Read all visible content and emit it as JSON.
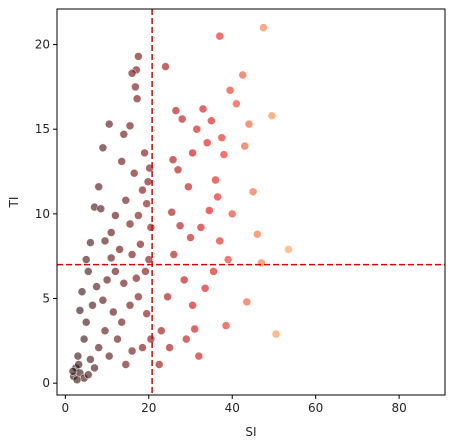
{
  "chart_data": {
    "type": "scatter",
    "title": "",
    "xlabel": "SI",
    "ylabel": "TI",
    "xlim": [
      -2,
      91
    ],
    "ylim": [
      -0.7,
      22.1
    ],
    "x_ticks": [
      0,
      20,
      40,
      60,
      80
    ],
    "y_ticks": [
      0,
      5,
      10,
      15,
      20
    ],
    "grid": false,
    "legend": "none",
    "thresholds": {
      "x": 20.8,
      "y": 7.0,
      "color": "#dd0000",
      "style": "dashed"
    },
    "color_map": {
      "description": "point colour encodes SI: near-black at low SI, dark red, bright red, orange at high SI",
      "stops": [
        "#2a0a0a",
        "#7a0000",
        "#e60000",
        "#ff9944"
      ]
    },
    "series": [
      {
        "values": [
          [
            47.5,
            21.0
          ],
          [
            37.0,
            20.5
          ],
          [
            42.5,
            18.2
          ],
          [
            39.5,
            17.3
          ],
          [
            49.5,
            15.8
          ],
          [
            44.0,
            15.3
          ],
          [
            43.0,
            14.0
          ],
          [
            45.0,
            11.3
          ],
          [
            46.0,
            8.8
          ],
          [
            53.5,
            7.9
          ],
          [
            39.0,
            7.3
          ],
          [
            47.0,
            7.1
          ],
          [
            43.5,
            4.8
          ],
          [
            38.5,
            3.4
          ],
          [
            50.5,
            2.9
          ],
          [
            40.0,
            10.0
          ],
          [
            36.0,
            12.0
          ],
          [
            38.0,
            13.5
          ],
          [
            41.0,
            16.5
          ],
          [
            35.0,
            15.5
          ],
          [
            33.0,
            16.2
          ],
          [
            31.5,
            15.0
          ],
          [
            34.0,
            14.2
          ],
          [
            37.5,
            14.5
          ],
          [
            36.5,
            11.0
          ],
          [
            34.5,
            10.2
          ],
          [
            32.5,
            9.2
          ],
          [
            37.0,
            8.4
          ],
          [
            35.5,
            6.6
          ],
          [
            33.5,
            5.6
          ],
          [
            30.5,
            4.6
          ],
          [
            31.0,
            3.2
          ],
          [
            29.0,
            2.6
          ],
          [
            32.0,
            1.6
          ],
          [
            28.5,
            6.1
          ],
          [
            30.0,
            8.6
          ],
          [
            29.5,
            11.6
          ],
          [
            30.5,
            13.6
          ],
          [
            28.0,
            15.6
          ],
          [
            26.5,
            16.1
          ],
          [
            24.0,
            18.7
          ],
          [
            27.0,
            12.6
          ],
          [
            25.5,
            10.1
          ],
          [
            26.0,
            7.6
          ],
          [
            24.5,
            5.1
          ],
          [
            23.0,
            3.1
          ],
          [
            25.0,
            2.1
          ],
          [
            22.5,
            1.1
          ],
          [
            27.5,
            9.3
          ],
          [
            25.8,
            13.2
          ]
        ]
      },
      {
        "values": [
          [
            17.5,
            19.3
          ],
          [
            17.0,
            18.5
          ],
          [
            16.0,
            18.3
          ],
          [
            16.8,
            17.5
          ],
          [
            17.2,
            16.8
          ],
          [
            15.5,
            15.2
          ],
          [
            14.0,
            14.7
          ],
          [
            10.5,
            15.3
          ],
          [
            9.0,
            13.9
          ],
          [
            13.5,
            13.1
          ],
          [
            16.5,
            12.4
          ],
          [
            19.0,
            13.6
          ],
          [
            20.2,
            12.7
          ],
          [
            18.5,
            11.4
          ],
          [
            19.8,
            11.9
          ],
          [
            8.0,
            11.6
          ],
          [
            7.0,
            10.4
          ],
          [
            8.5,
            10.3
          ],
          [
            12.0,
            9.9
          ],
          [
            14.5,
            10.8
          ],
          [
            15.5,
            9.4
          ],
          [
            17.5,
            9.9
          ],
          [
            19.5,
            10.6
          ],
          [
            20.5,
            9.2
          ],
          [
            11.0,
            8.9
          ],
          [
            9.5,
            8.4
          ],
          [
            6.0,
            8.3
          ],
          [
            5.0,
            7.3
          ],
          [
            13.0,
            7.9
          ],
          [
            16.0,
            7.6
          ],
          [
            18.0,
            8.2
          ],
          [
            20.0,
            7.3
          ],
          [
            19.2,
            6.6
          ],
          [
            17.0,
            6.2
          ],
          [
            14.0,
            5.9
          ],
          [
            12.0,
            6.6
          ],
          [
            10.0,
            6.1
          ],
          [
            7.5,
            5.7
          ],
          [
            5.5,
            6.6
          ],
          [
            4.0,
            5.4
          ],
          [
            3.5,
            4.3
          ],
          [
            5.0,
            3.6
          ],
          [
            6.5,
            4.6
          ],
          [
            9.0,
            4.9
          ],
          [
            11.5,
            4.2
          ],
          [
            13.5,
            3.6
          ],
          [
            15.5,
            4.6
          ],
          [
            17.5,
            5.1
          ],
          [
            19.5,
            4.1
          ],
          [
            20.5,
            2.6
          ],
          [
            18.5,
            2.1
          ],
          [
            16.0,
            1.9
          ],
          [
            14.5,
            1.1
          ],
          [
            12.5,
            2.6
          ],
          [
            10.5,
            1.6
          ],
          [
            8.0,
            2.1
          ],
          [
            6.0,
            1.4
          ],
          [
            4.5,
            2.6
          ],
          [
            3.0,
            1.6
          ],
          [
            2.5,
            0.9
          ],
          [
            2.0,
            0.4
          ],
          [
            3.5,
            0.6
          ],
          [
            4.5,
            0.3
          ],
          [
            2.8,
            0.2
          ],
          [
            5.5,
            0.5
          ],
          [
            7.0,
            0.9
          ],
          [
            1.8,
            0.7
          ],
          [
            3.2,
            1.1
          ],
          [
            9.5,
            3.1
          ],
          [
            11.0,
            7.4
          ]
        ]
      }
    ]
  }
}
